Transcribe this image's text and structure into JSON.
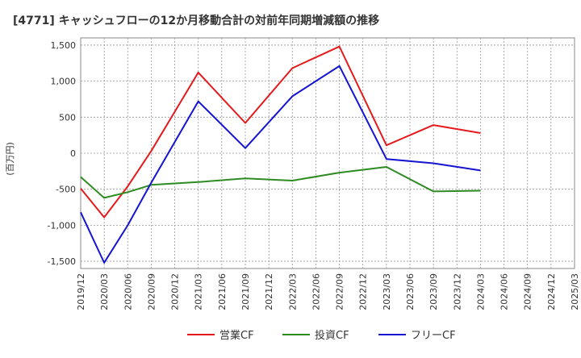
{
  "chart_data": {
    "type": "line",
    "title": "[4771]  キャッシュフローの12か月移動合計の対前年同期増減額の推移",
    "ylabel": "(百万円)",
    "xlabel": "",
    "ylim": [
      -1600,
      1600
    ],
    "yticks": [
      1500,
      1000,
      500,
      0,
      -500,
      -1000,
      -1500
    ],
    "ytick_labels": [
      "1,500",
      "1,000",
      "500",
      "0",
      "-500",
      "-1,000",
      "-1,500"
    ],
    "categories": [
      "2019/12",
      "2020/03",
      "2020/06",
      "2020/09",
      "2020/12",
      "2021/03",
      "2021/06",
      "2021/09",
      "2021/12",
      "2022/03",
      "2022/06",
      "2022/09",
      "2022/12",
      "2023/03",
      "2023/06",
      "2023/09",
      "2023/12",
      "2024/03",
      "2024/06",
      "2024/09",
      "2024/12",
      "2025/03"
    ],
    "grid": true,
    "legend_position": "bottom",
    "series": [
      {
        "name": "営業CF",
        "color": "#e41a1c",
        "values": [
          -490,
          -890,
          -460,
          30,
          null,
          1120,
          null,
          420,
          null,
          1180,
          null,
          1480,
          null,
          110,
          null,
          390,
          null,
          280,
          null,
          null,
          null,
          null
        ]
      },
      {
        "name": "投資CF",
        "color": "#2e8b22",
        "values": [
          -330,
          -620,
          -540,
          -440,
          null,
          -400,
          null,
          -350,
          null,
          -380,
          null,
          -270,
          null,
          -190,
          null,
          -530,
          null,
          -520,
          null,
          null,
          null,
          null
        ]
      },
      {
        "name": "フリーCF",
        "color": "#1414d2",
        "values": [
          -820,
          -1520,
          -1000,
          -410,
          null,
          720,
          null,
          70,
          null,
          790,
          null,
          1210,
          null,
          -80,
          null,
          -140,
          null,
          -240,
          null,
          null,
          null,
          null
        ]
      }
    ]
  }
}
